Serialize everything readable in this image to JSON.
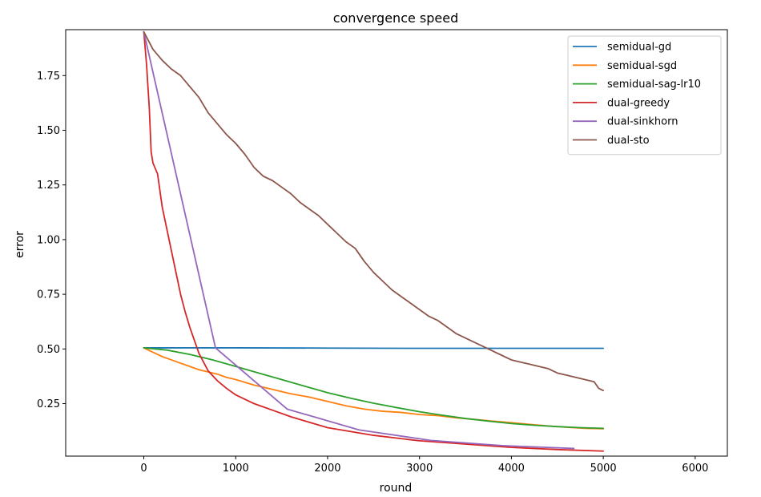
{
  "chart_data": {
    "type": "line",
    "title": "convergence speed",
    "xlabel": "round",
    "ylabel": "error",
    "xlim": [
      -850,
      6350
    ],
    "ylim": [
      0.01,
      1.96
    ],
    "xticks": [
      0,
      1000,
      2000,
      3000,
      4000,
      5000,
      6000
    ],
    "xtick_labels": [
      "0",
      "1000",
      "2000",
      "3000",
      "4000",
      "5000",
      "6000"
    ],
    "yticks": [
      0.25,
      0.5,
      0.75,
      1.0,
      1.25,
      1.5,
      1.75
    ],
    "ytick_labels": [
      "0.25",
      "0.50",
      "0.75",
      "1.00",
      "1.25",
      "1.50",
      "1.75"
    ],
    "grid": false,
    "legend_position": "top-right",
    "series": [
      {
        "name": "semidual-gd",
        "color": "#1f77b4",
        "x": [
          0,
          1000,
          2000,
          3000,
          4000,
          5000
        ],
        "y": [
          0.505,
          0.505,
          0.504,
          0.503,
          0.503,
          0.503
        ]
      },
      {
        "name": "semidual-sgd",
        "color": "#ff7f0e",
        "x": [
          0,
          100,
          200,
          300,
          400,
          500,
          600,
          700,
          800,
          900,
          1000,
          1200,
          1400,
          1600,
          1800,
          2000,
          2200,
          2400,
          2600,
          2800,
          3000,
          3200,
          3400,
          3600,
          3800,
          4000,
          4200,
          4400,
          4600,
          4800,
          5000
        ],
        "y": [
          0.505,
          0.485,
          0.465,
          0.45,
          0.435,
          0.42,
          0.405,
          0.395,
          0.385,
          0.37,
          0.36,
          0.335,
          0.315,
          0.295,
          0.28,
          0.26,
          0.24,
          0.225,
          0.215,
          0.21,
          0.2,
          0.195,
          0.185,
          0.178,
          0.17,
          0.163,
          0.155,
          0.148,
          0.142,
          0.137,
          0.135
        ]
      },
      {
        "name": "semidual-sag-lr10",
        "color": "#2ca02c",
        "x": [
          0,
          250,
          500,
          750,
          1000,
          1250,
          1500,
          1750,
          2000,
          2250,
          2500,
          2750,
          3000,
          3250,
          3500,
          3750,
          4000,
          4250,
          4500,
          4750,
          5000
        ],
        "y": [
          0.505,
          0.495,
          0.475,
          0.45,
          0.42,
          0.39,
          0.36,
          0.33,
          0.3,
          0.275,
          0.252,
          0.232,
          0.213,
          0.197,
          0.182,
          0.17,
          0.159,
          0.151,
          0.145,
          0.14,
          0.137
        ]
      },
      {
        "name": "dual-greedy",
        "color": "#d62728",
        "x": [
          0,
          30,
          60,
          80,
          100,
          150,
          200,
          250,
          300,
          350,
          400,
          450,
          500,
          600,
          700,
          800,
          900,
          1000,
          1200,
          1400,
          1600,
          1800,
          2000,
          2500,
          3000,
          3500,
          4000,
          4500,
          5000
        ],
        "y": [
          1.95,
          1.8,
          1.6,
          1.4,
          1.35,
          1.3,
          1.15,
          1.05,
          0.95,
          0.85,
          0.75,
          0.67,
          0.6,
          0.48,
          0.4,
          0.355,
          0.32,
          0.29,
          0.25,
          0.22,
          0.19,
          0.165,
          0.14,
          0.105,
          0.08,
          0.065,
          0.05,
          0.04,
          0.033
        ]
      },
      {
        "name": "dual-sinkhorn",
        "color": "#9467bd",
        "x": [
          0,
          780,
          1560,
          2340,
          3120,
          3900,
          4680
        ],
        "y": [
          1.95,
          0.505,
          0.225,
          0.13,
          0.082,
          0.058,
          0.045
        ]
      },
      {
        "name": "dual-sto",
        "color": "#8c564b",
        "x": [
          0,
          100,
          200,
          300,
          400,
          500,
          600,
          700,
          800,
          900,
          1000,
          1100,
          1200,
          1300,
          1400,
          1500,
          1600,
          1700,
          1800,
          1900,
          2000,
          2100,
          2200,
          2300,
          2400,
          2500,
          2600,
          2700,
          2800,
          2900,
          3000,
          3100,
          3200,
          3300,
          3400,
          3500,
          3600,
          3700,
          3800,
          3900,
          4000,
          4100,
          4200,
          4300,
          4400,
          4500,
          4600,
          4700,
          4800,
          4900,
          4950,
          5000
        ],
        "y": [
          1.95,
          1.87,
          1.82,
          1.78,
          1.75,
          1.7,
          1.65,
          1.58,
          1.53,
          1.48,
          1.44,
          1.39,
          1.33,
          1.29,
          1.27,
          1.24,
          1.21,
          1.17,
          1.14,
          1.11,
          1.07,
          1.03,
          0.99,
          0.96,
          0.9,
          0.85,
          0.81,
          0.77,
          0.74,
          0.71,
          0.68,
          0.65,
          0.63,
          0.6,
          0.57,
          0.55,
          0.53,
          0.51,
          0.49,
          0.47,
          0.45,
          0.44,
          0.43,
          0.42,
          0.41,
          0.39,
          0.38,
          0.37,
          0.36,
          0.35,
          0.32,
          0.31
        ]
      }
    ]
  }
}
